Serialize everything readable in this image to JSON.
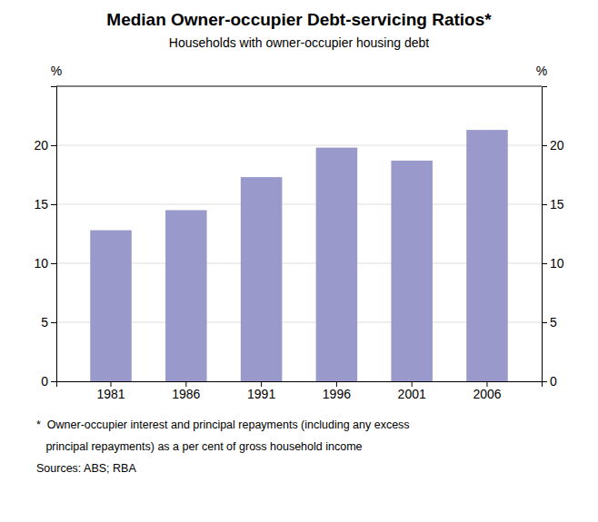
{
  "chart_data": {
    "type": "bar",
    "title": "Median Owner-occupier Debt-servicing Ratios*",
    "subtitle": "Households with owner-occupier housing debt",
    "categories": [
      "1981",
      "1986",
      "1991",
      "1996",
      "2001",
      "2006"
    ],
    "values": [
      12.8,
      14.5,
      17.3,
      19.8,
      18.7,
      21.3
    ],
    "color": "#9999cc",
    "ylim": [
      0,
      25
    ],
    "yticks": [
      0,
      5,
      10,
      15,
      20
    ],
    "y2lim": [
      0,
      25
    ],
    "y2ticks": [
      0,
      5,
      10,
      15,
      20
    ],
    "y_label": "%",
    "y2_label": "%",
    "footnotes": [
      "*  Owner-occupier interest and principal repayments (including any excess",
      "   principal repayments) as a per cent of gross household income",
      "Sources: ABS; RBA"
    ],
    "grid": true
  }
}
